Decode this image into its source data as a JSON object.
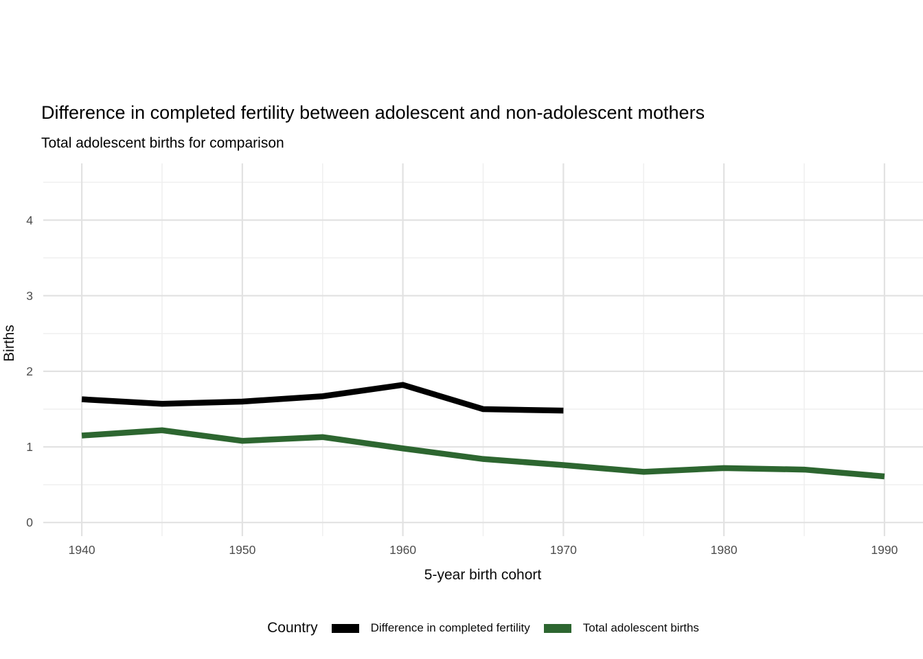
{
  "title": "Difference in completed fertility between adolescent and non-adolescent mothers",
  "subtitle": "Total adolescent births for comparison",
  "axes": {
    "x_label": "5-year birth cohort",
    "y_label": "Births"
  },
  "legend": {
    "title": "Country",
    "items": [
      {
        "label": "Difference in completed fertility",
        "color": "#000000"
      },
      {
        "label": "Total adolescent births",
        "color": "#2d6630"
      }
    ]
  },
  "colors": {
    "background": "#ffffff",
    "grid_major": "#e2e2e2",
    "grid_minor": "#efefef",
    "tick_text": "#4d4d4d",
    "series_black": "#000000",
    "series_green": "#2d6630"
  },
  "chart_data": {
    "type": "line",
    "title": "Difference in completed fertility between adolescent and non-adolescent mothers",
    "subtitle": "Total adolescent births for comparison",
    "xlabel": "5-year birth cohort",
    "ylabel": "Births",
    "grid": true,
    "legend_position": "bottom",
    "xlim": [
      1937.6,
      1992.4
    ],
    "ylim": [
      -0.18,
      4.75
    ],
    "x_ticks": [
      1940,
      1950,
      1960,
      1970,
      1980,
      1990
    ],
    "x_minor_ticks": [
      1945,
      1955,
      1965,
      1975,
      1985
    ],
    "y_ticks": [
      0,
      1,
      2,
      3,
      4
    ],
    "y_minor_ticks": [
      0.5,
      1.5,
      2.5,
      3.5,
      4.5
    ],
    "series": [
      {
        "name": "Difference in completed fertility",
        "color": "#000000",
        "x": [
          1940,
          1945,
          1950,
          1955,
          1960,
          1965,
          1970
        ],
        "values": [
          1.63,
          1.57,
          1.6,
          1.67,
          1.82,
          1.5,
          1.48
        ]
      },
      {
        "name": "Total adolescent births",
        "color": "#2d6630",
        "x": [
          1940,
          1945,
          1950,
          1955,
          1960,
          1965,
          1970,
          1975,
          1980,
          1985,
          1990
        ],
        "values": [
          1.15,
          1.22,
          1.08,
          1.13,
          0.98,
          0.84,
          0.76,
          0.67,
          0.72,
          0.7,
          0.61
        ]
      }
    ]
  }
}
